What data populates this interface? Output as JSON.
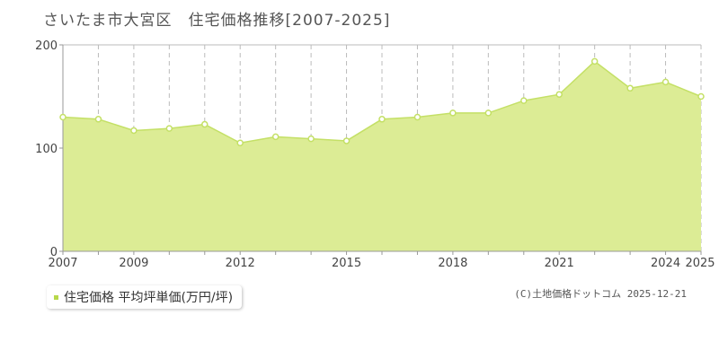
{
  "colors": {
    "fill": "#dcec95",
    "line": "#c4e066",
    "grid": "#bbbbbb",
    "axis": "#999999",
    "point_fill": "#ffffff",
    "legend_marker": "#b7d84a"
  },
  "chart_data": {
    "type": "area",
    "title": "さいたま市大宮区　住宅価格推移[2007-2025]",
    "x_ticks": [
      "2007",
      "2009",
      "2012",
      "2015",
      "2018",
      "2021",
      "2024",
      "2025"
    ],
    "y_ticks": [
      "0",
      "100",
      "200"
    ],
    "xlim": [
      2007,
      2025
    ],
    "ylim": [
      0,
      200
    ],
    "grid": true,
    "legend_position": "bottom-left",
    "series": [
      {
        "name": "住宅価格 平均坪単価(万円/坪)",
        "x": [
          2007,
          2008,
          2009,
          2010,
          2011,
          2012,
          2013,
          2014,
          2015,
          2016,
          2017,
          2018,
          2019,
          2020,
          2021,
          2022,
          2023,
          2024,
          2025
        ],
        "y": [
          130,
          128,
          117,
          119,
          123,
          105,
          111,
          109,
          107,
          128,
          130,
          134,
          134,
          146,
          152,
          184,
          158,
          164,
          150
        ]
      }
    ]
  },
  "credit": "(C)土地価格ドットコム 2025-12-21"
}
